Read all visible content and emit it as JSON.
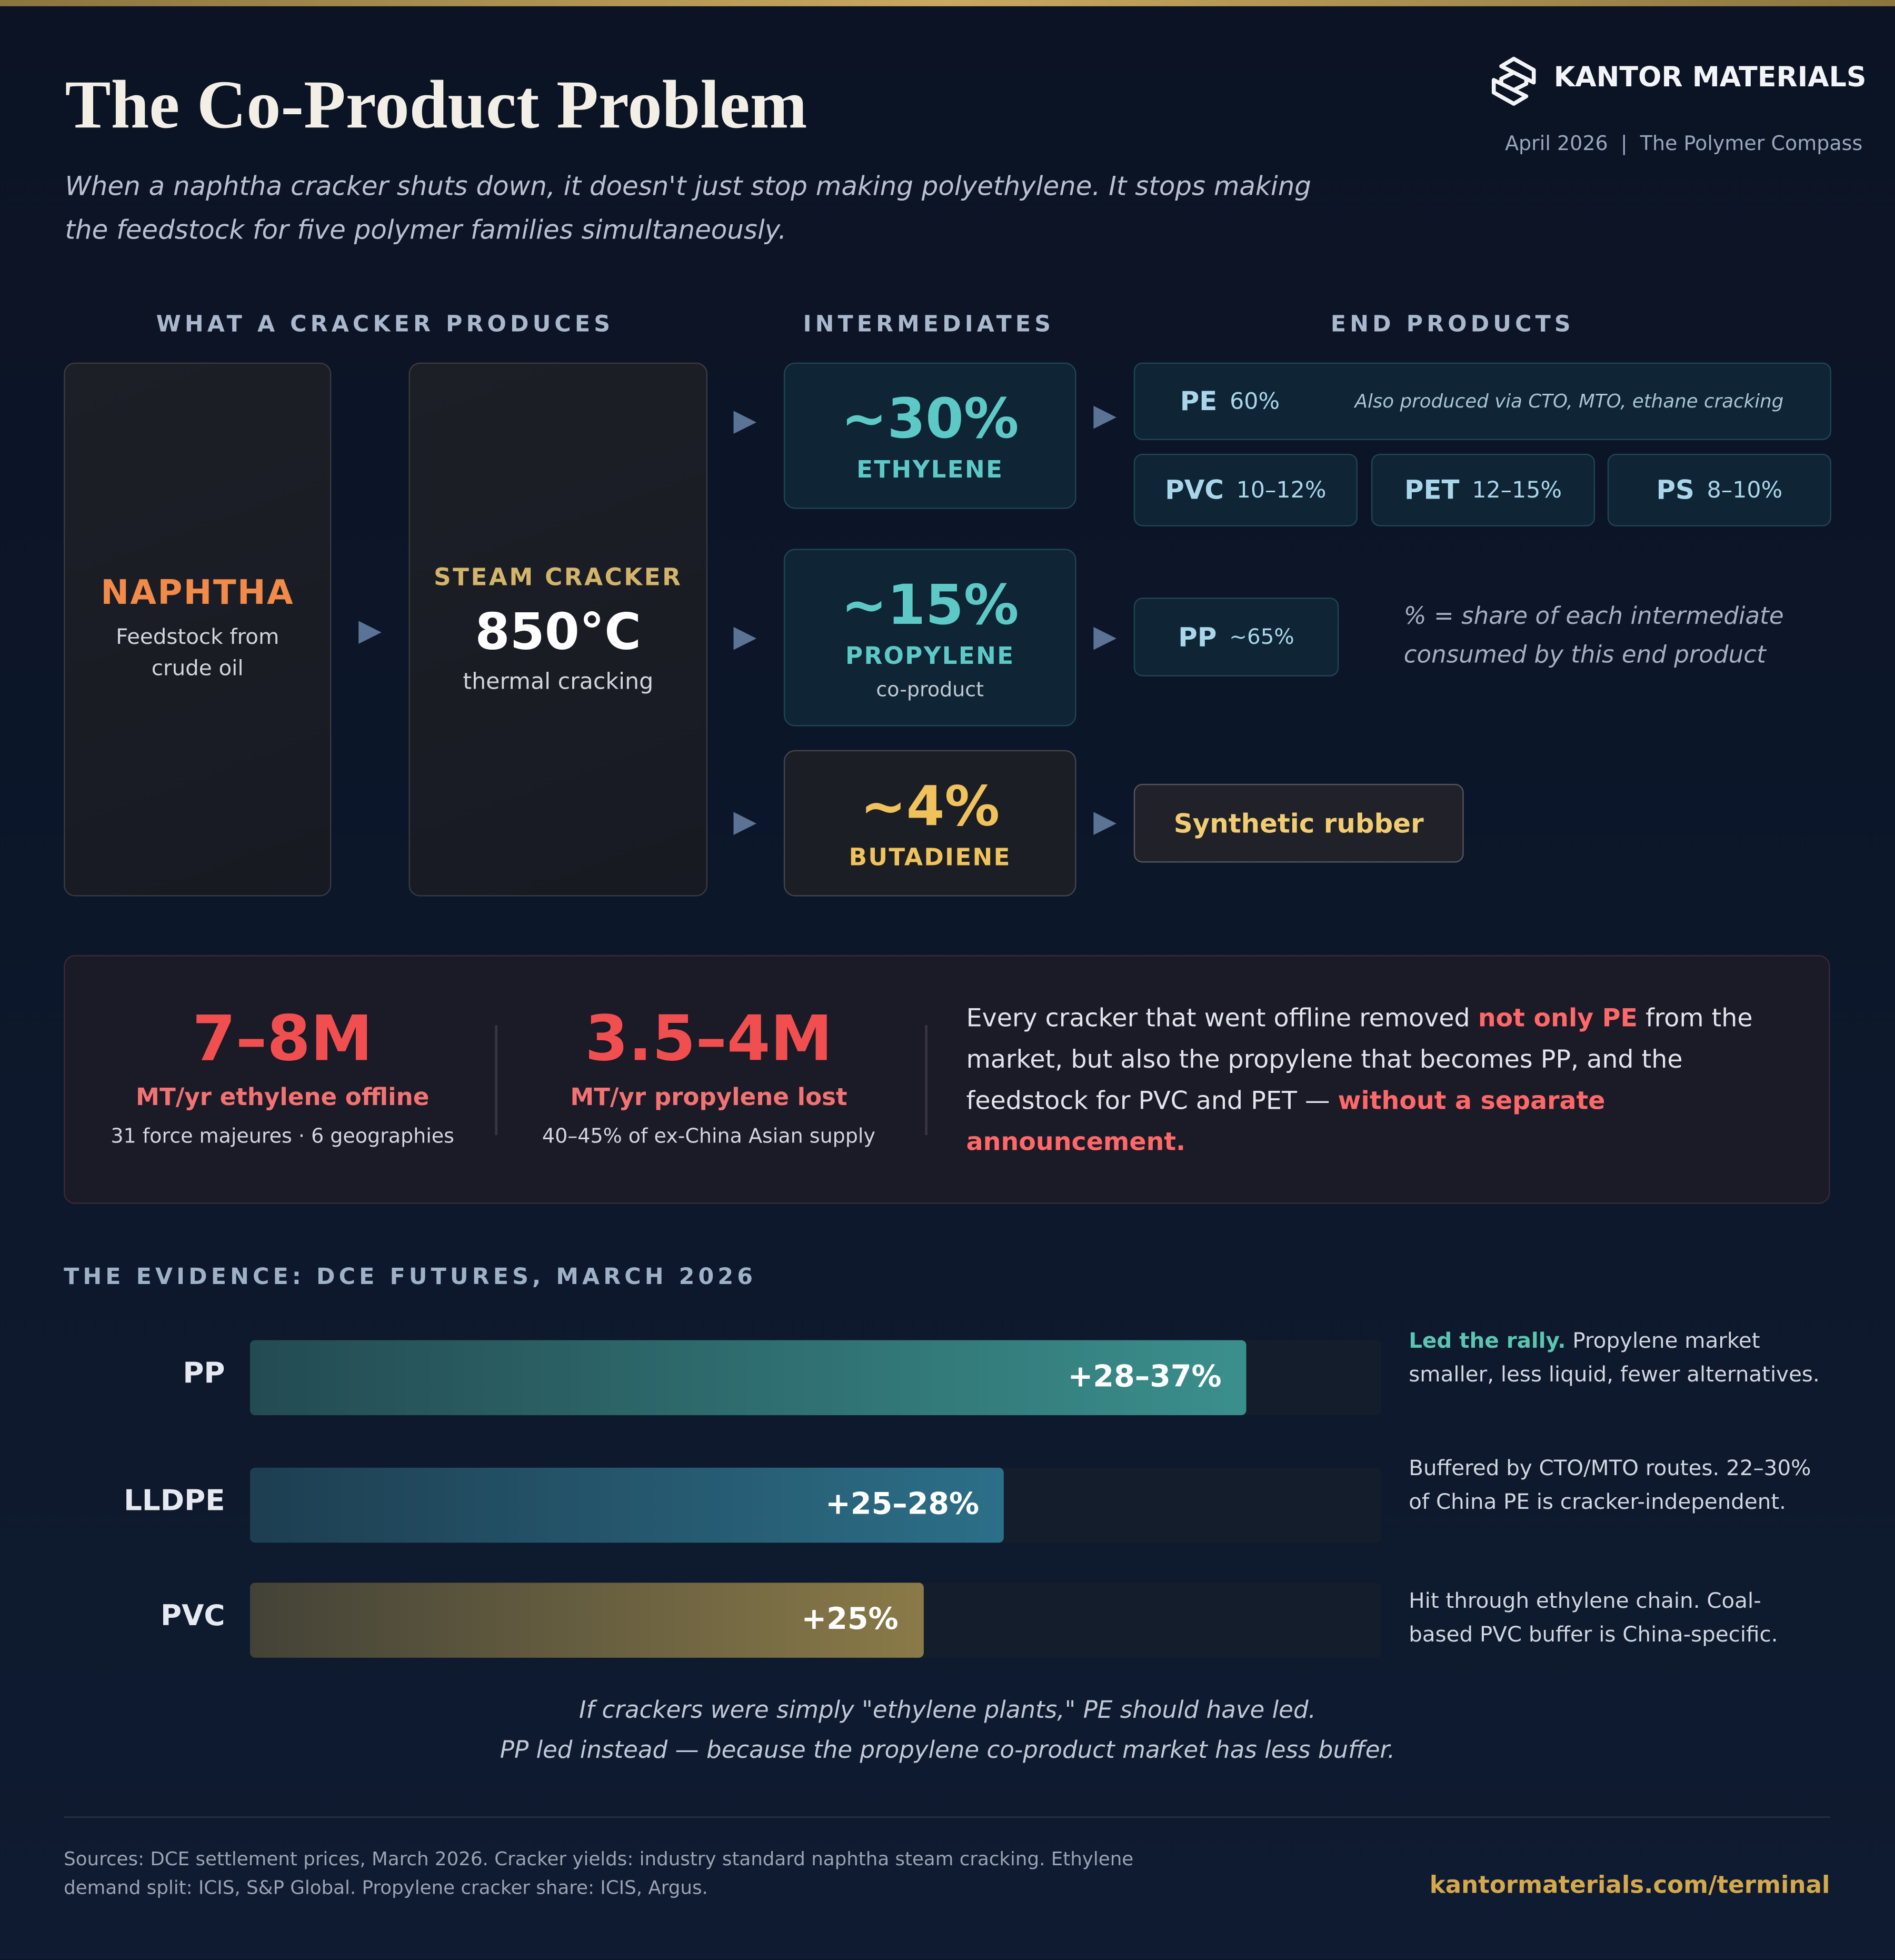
{
  "header": {
    "title": "The Co-Product Problem",
    "subtitle": "When a naphtha cracker shuts down, it doesn't just stop making polyethylene. It stops making the feedstock for five polymer families simultaneously.",
    "brand": "KANTOR MATERIALS",
    "meta": "April 2026  |  The Polymer Compass"
  },
  "flow": {
    "headings": [
      "WHAT A CRACKER PRODUCES",
      "INTERMEDIATES",
      "END PRODUCTS"
    ],
    "feed": {
      "name": "NAPHTHA",
      "desc": "Feedstock from crude oil"
    },
    "cracker": {
      "name": "STEAM CRACKER",
      "temp": "850°C",
      "desc": "thermal cracking"
    },
    "intermediates": [
      {
        "share": "~30%",
        "name": "ETHYLENE"
      },
      {
        "share": "~15%",
        "name": "PROPYLENE",
        "note": "co-product"
      },
      {
        "share": "~4%",
        "name": "BUTADIENE"
      }
    ],
    "pe": {
      "name": "PE",
      "share": "60%",
      "note": "Also produced via CTO, MTO, ethane cracking"
    },
    "ethylene_others": [
      {
        "name": "PVC",
        "share": "10–12%"
      },
      {
        "name": "PET",
        "share": "12–15%"
      },
      {
        "name": "PS",
        "share": "8–10%"
      }
    ],
    "pp": {
      "name": "PP",
      "share": "~65%"
    },
    "rubber": "Synthetic rubber",
    "legend_note": "% = share of each intermediate consumed by this end product"
  },
  "impact": {
    "stats": [
      {
        "value": "7–8M",
        "label": "MT/yr ethylene offline",
        "note": "31 force majeures · 6 geographies"
      },
      {
        "value": "3.5–4M",
        "label": "MT/yr propylene lost",
        "note": "40–45% of ex-China Asian supply"
      }
    ],
    "text": [
      "Every cracker that went offline removed ",
      "not only PE",
      " from the market, but also the propylene that becomes PP, and the feedstock for PVC and PET — ",
      "without a separate announcement."
    ]
  },
  "evidence": {
    "title": "THE EVIDENCE: DCE FUTURES, MARCH 2026",
    "notes": [
      {
        "lead": "Led the rally.",
        "text": " Propylene market smaller, less liquid, fewer alternatives."
      },
      {
        "text": "Buffered by CTO/MTO routes. 22–30% of China PE is cracker-independent."
      },
      {
        "text": "Hit through ethylene chain. Coal-based PVC buffer is China-specific."
      }
    ],
    "caption": [
      "If crackers were simply \"ethylene plants,\" PE should have led.",
      "PP led instead — because the propylene co-product market has less buffer."
    ]
  },
  "chart_data": {
    "type": "bar",
    "orientation": "horizontal",
    "categories": [
      "PP",
      "LLDPE",
      "PVC"
    ],
    "values": [
      37,
      28,
      25
    ],
    "value_labels": [
      "+28–37%",
      "+25–28%",
      "+25%"
    ],
    "colors": [
      "#3a8f8c",
      "#2c6f88",
      "#8a7a48"
    ],
    "xlim": [
      0,
      42
    ]
  },
  "footer": {
    "sources": "Sources: DCE settlement prices, March 2026. Cracker yields: industry standard naphtha steam cracking. Ethylene demand split: ICIS, S&P Global. Propylene cracker share: ICIS, Argus.",
    "link": "kantormaterials.com/terminal"
  }
}
